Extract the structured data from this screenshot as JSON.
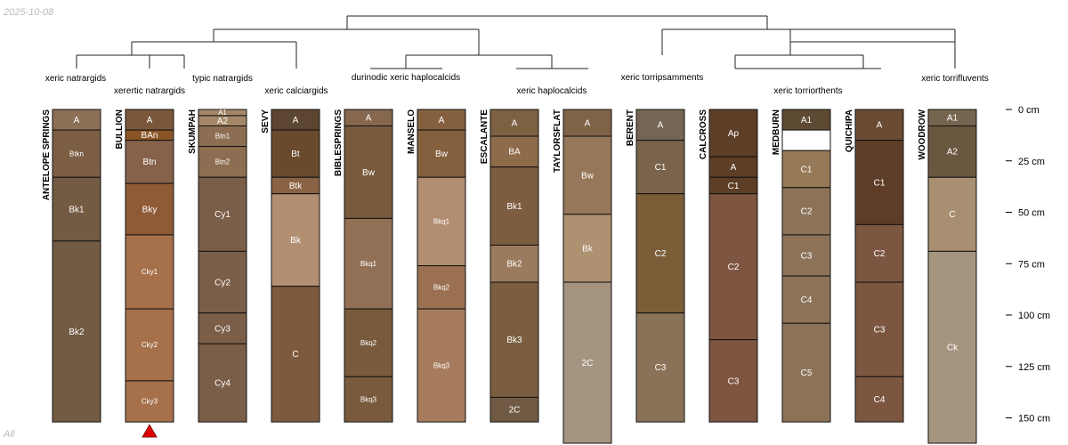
{
  "date_stamp": "2025-10-08",
  "set_label": "All",
  "depth_axis": {
    "unit": "cm",
    "max_depth_cm": 165,
    "ticks": [
      0,
      25,
      50,
      75,
      100,
      125,
      150
    ]
  },
  "taxonomy_labels": [
    "xeric natrargids",
    "xerertic natrargids",
    "typic natrargids",
    "xeric calciargids",
    "durinodic xeric haplocalcids",
    "xeric haplocalcids",
    "xeric torripsamments",
    "xeric torriorthents",
    "xeric torrifluvents"
  ],
  "profiles": [
    {
      "name": "ANTELOPE SPRINGS",
      "horizons": [
        {
          "name": "A",
          "top": 0,
          "bottom": 10,
          "color": "#8c7056"
        },
        {
          "name": "Btkn",
          "top": 10,
          "bottom": 33,
          "color": "#7b5e43"
        },
        {
          "name": "Bk1",
          "top": 33,
          "bottom": 64,
          "color": "#735a42"
        },
        {
          "name": "Bk2",
          "top": 64,
          "bottom": 152,
          "color": "#735a42"
        }
      ]
    },
    {
      "name": "BULLION",
      "horizons": [
        {
          "name": "A",
          "top": 0,
          "bottom": 10,
          "color": "#7a573a"
        },
        {
          "name": "BAn",
          "top": 10,
          "bottom": 15,
          "color": "#8a5526"
        },
        {
          "name": "Btn",
          "top": 15,
          "bottom": 36,
          "color": "#86624a"
        },
        {
          "name": "Bky",
          "top": 36,
          "bottom": 61,
          "color": "#8f5a36"
        },
        {
          "name": "Cky1",
          "top": 61,
          "bottom": 97,
          "color": "#a5704a"
        },
        {
          "name": "Cky2",
          "top": 97,
          "bottom": 132,
          "color": "#a5704a"
        },
        {
          "name": "Cky3",
          "top": 132,
          "bottom": 152,
          "color": "#a5704a"
        }
      ],
      "truncated": true
    },
    {
      "name": "SKUMPAH",
      "horizons": [
        {
          "name": "A1",
          "top": 0,
          "bottom": 3,
          "color": "#a38766"
        },
        {
          "name": "A2",
          "top": 3,
          "bottom": 8,
          "color": "#a38766"
        },
        {
          "name": "Btn1",
          "top": 8,
          "bottom": 18,
          "color": "#8e6e52"
        },
        {
          "name": "Btn2",
          "top": 18,
          "bottom": 33,
          "color": "#8e6e52"
        },
        {
          "name": "Cy1",
          "top": 33,
          "bottom": 69,
          "color": "#7b5e48"
        },
        {
          "name": "Cy2",
          "top": 69,
          "bottom": 99,
          "color": "#7b5e48"
        },
        {
          "name": "Cy3",
          "top": 99,
          "bottom": 114,
          "color": "#7b5e48"
        },
        {
          "name": "Cy4",
          "top": 114,
          "bottom": 152,
          "color": "#7b5e48"
        }
      ]
    },
    {
      "name": "SEVY",
      "horizons": [
        {
          "name": "A",
          "top": 0,
          "bottom": 10,
          "color": "#5c4631"
        },
        {
          "name": "Bt",
          "top": 10,
          "bottom": 33,
          "color": "#6a4a2d"
        },
        {
          "name": "Btk",
          "top": 33,
          "bottom": 41,
          "color": "#8a6244"
        },
        {
          "name": "Bk",
          "top": 41,
          "bottom": 86,
          "color": "#b38f72"
        },
        {
          "name": "C",
          "top": 86,
          "bottom": 152,
          "color": "#7d5a3e"
        }
      ]
    },
    {
      "name": "BIBLESPRINGS",
      "horizons": [
        {
          "name": "A",
          "top": 0,
          "bottom": 8,
          "color": "#85684d"
        },
        {
          "name": "Bw",
          "top": 8,
          "bottom": 53,
          "color": "#7a5a3d"
        },
        {
          "name": "Bkq1",
          "top": 53,
          "bottom": 97,
          "color": "#917055"
        },
        {
          "name": "Bkq2",
          "top": 97,
          "bottom": 130,
          "color": "#7a5a3d"
        },
        {
          "name": "Bkq3",
          "top": 130,
          "bottom": 152,
          "color": "#7a5a3d"
        }
      ]
    },
    {
      "name": "MANSELO",
      "horizons": [
        {
          "name": "A",
          "top": 0,
          "bottom": 10,
          "color": "#85603f"
        },
        {
          "name": "Bw",
          "top": 10,
          "bottom": 33,
          "color": "#85603f"
        },
        {
          "name": "Bkq1",
          "top": 33,
          "bottom": 76,
          "color": "#b38d70"
        },
        {
          "name": "Bkq2",
          "top": 76,
          "bottom": 97,
          "color": "#9b7052"
        },
        {
          "name": "Bkq3",
          "top": 97,
          "bottom": 152,
          "color": "#a77c5e"
        }
      ]
    },
    {
      "name": "ESCALANTE",
      "horizons": [
        {
          "name": "A",
          "top": 0,
          "bottom": 13,
          "color": "#7c6142"
        },
        {
          "name": "BA",
          "top": 13,
          "bottom": 28,
          "color": "#8e6b4a"
        },
        {
          "name": "Bk1",
          "top": 28,
          "bottom": 66,
          "color": "#7d5d40"
        },
        {
          "name": "Bk2",
          "top": 66,
          "bottom": 84,
          "color": "#9c7a5e"
        },
        {
          "name": "Bk3",
          "top": 84,
          "bottom": 140,
          "color": "#7a5e3f"
        },
        {
          "name": "2C",
          "top": 140,
          "bottom": 152,
          "color": "#705a43"
        }
      ]
    },
    {
      "name": "TAYLORSFLAT",
      "horizons": [
        {
          "name": "A",
          "top": 0,
          "bottom": 13,
          "color": "#7f6346"
        },
        {
          "name": "Bw",
          "top": 13,
          "bottom": 51,
          "color": "#967759"
        },
        {
          "name": "Bk",
          "top": 51,
          "bottom": 84,
          "color": "#ae9170"
        },
        {
          "name": "2C",
          "top": 84,
          "bottom": 165,
          "color": "#a49480"
        }
      ]
    },
    {
      "name": "BERENT",
      "horizons": [
        {
          "name": "A",
          "top": 0,
          "bottom": 15,
          "color": "#756554"
        },
        {
          "name": "C1",
          "top": 15,
          "bottom": 41,
          "color": "#7a634b"
        },
        {
          "name": "C2",
          "top": 41,
          "bottom": 99,
          "color": "#7b5e38"
        },
        {
          "name": "C3",
          "top": 99,
          "bottom": 152,
          "color": "#8a7258"
        }
      ]
    },
    {
      "name": "CALCROSS",
      "horizons": [
        {
          "name": "Ap",
          "top": 0,
          "bottom": 23,
          "color": "#5d3e27"
        },
        {
          "name": "A",
          "top": 23,
          "bottom": 33,
          "color": "#5d3e27"
        },
        {
          "name": "C1",
          "top": 33,
          "bottom": 41,
          "color": "#5d3e27"
        },
        {
          "name": "C2",
          "top": 41,
          "bottom": 112,
          "color": "#7d5540"
        },
        {
          "name": "C3",
          "top": 112,
          "bottom": 152,
          "color": "#7d5540"
        }
      ]
    },
    {
      "name": "MEDBURN",
      "horizons": [
        {
          "name": "A1",
          "top": 0,
          "bottom": 10,
          "color": "#5e4a32"
        },
        {
          "name": "",
          "top": 10,
          "bottom": 20,
          "color": "#ffffff"
        },
        {
          "name": "C1",
          "top": 20,
          "bottom": 38,
          "color": "#967956"
        },
        {
          "name": "C2",
          "top": 38,
          "bottom": 61,
          "color": "#8c7358"
        },
        {
          "name": "C3",
          "top": 61,
          "bottom": 81,
          "color": "#8c7358"
        },
        {
          "name": "C4",
          "top": 81,
          "bottom": 104,
          "color": "#8c7358"
        },
        {
          "name": "C5",
          "top": 104,
          "bottom": 152,
          "color": "#8c7358"
        }
      ]
    },
    {
      "name": "QUICHIPA",
      "horizons": [
        {
          "name": "A",
          "top": 0,
          "bottom": 15,
          "color": "#6b4a33"
        },
        {
          "name": "C1",
          "top": 15,
          "bottom": 56,
          "color": "#5e3d28"
        },
        {
          "name": "C2",
          "top": 56,
          "bottom": 84,
          "color": "#7c5641"
        },
        {
          "name": "C3",
          "top": 84,
          "bottom": 130,
          "color": "#7c5641"
        },
        {
          "name": "C4",
          "top": 130,
          "bottom": 152,
          "color": "#7c5641"
        }
      ]
    },
    {
      "name": "WOODROW",
      "horizons": [
        {
          "name": "A1",
          "top": 0,
          "bottom": 8,
          "color": "#75654f"
        },
        {
          "name": "A2",
          "top": 8,
          "bottom": 33,
          "color": "#6a573f"
        },
        {
          "name": "C",
          "top": 33,
          "bottom": 69,
          "color": "#a88f72"
        },
        {
          "name": "Ck",
          "top": 69,
          "bottom": 165,
          "color": "#a5957f"
        }
      ]
    }
  ]
}
